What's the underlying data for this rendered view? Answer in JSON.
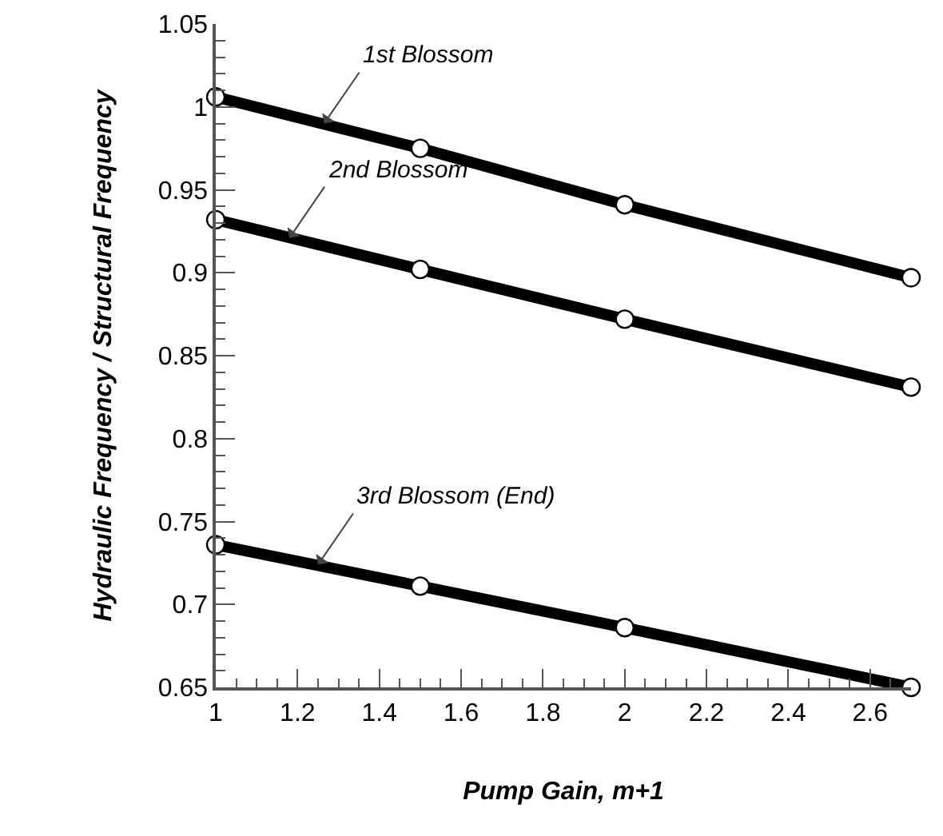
{
  "chart_data": {
    "type": "line",
    "xlabel": "Pump Gain, m+1",
    "ylabel": "Hydraulic Frequency / Structural Frequency",
    "x": [
      1,
      1.5,
      2,
      2.7
    ],
    "series": [
      {
        "color": "#000000",
        "values": [
          1.006,
          0.975,
          0.941,
          0.897
        ]
      },
      {
        "color": "#000000",
        "values": [
          0.932,
          0.902,
          0.872,
          0.831
        ]
      },
      {
        "color": "#000000",
        "values": [
          0.736,
          0.711,
          0.686,
          0.65
        ]
      }
    ],
    "annotations": [
      {
        "text": "1st Blossom",
        "x": 1.265,
        "y": 0.99
      },
      {
        "text": "2nd Blossom",
        "x": 1.18,
        "y": 0.921
      },
      {
        "text": "3rd Blossom (End)",
        "x": 1.25,
        "y": 0.724
      }
    ],
    "xlim": [
      1,
      2.7
    ],
    "xticks": [
      1,
      1.2,
      1.4,
      1.6,
      1.8,
      2,
      2.2,
      2.4,
      2.6
    ],
    "ylim": [
      0.65,
      1.05
    ],
    "yticks": [
      0.65,
      0.7,
      0.75,
      0.8,
      0.85,
      0.9,
      0.95,
      1,
      1.05
    ],
    "grid": false,
    "marker": "circle",
    "line_style": "solid"
  }
}
